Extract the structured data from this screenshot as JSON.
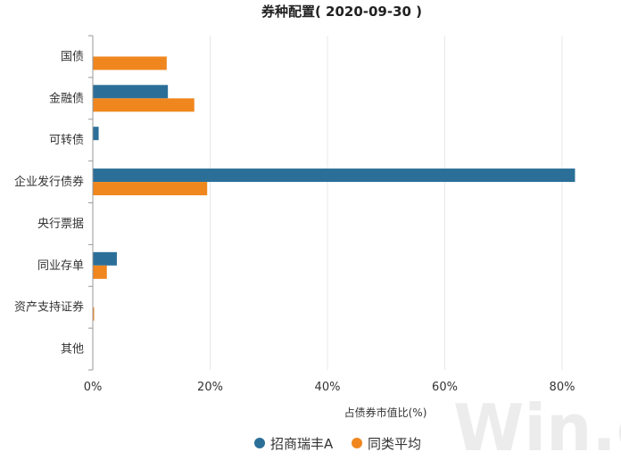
{
  "chart_data": {
    "type": "bar",
    "orientation": "horizontal",
    "title": "券种配置( 2020-09-30 )",
    "xlabel": "占债券市值比(%)",
    "ylabel": "",
    "xlim": [
      0,
      85
    ],
    "x_ticks": [
      "0%",
      "20%",
      "40%",
      "60%",
      "80%"
    ],
    "categories": [
      "国债",
      "金融债",
      "可转债",
      "企业发行债券",
      "央行票据",
      "同业存单",
      "资产支持证券",
      "其他"
    ],
    "series": [
      {
        "name": "招商瑞丰A",
        "color": "#2b6f99",
        "values": [
          0,
          12.8,
          1.0,
          82.2,
          0,
          4.1,
          0,
          0
        ]
      },
      {
        "name": "同类平均",
        "color": "#f0871e",
        "values": [
          12.6,
          17.3,
          0,
          19.5,
          0,
          2.4,
          0.2,
          0
        ]
      }
    ],
    "grid": true,
    "legend_position": "bottom"
  },
  "watermark": "Win.d"
}
